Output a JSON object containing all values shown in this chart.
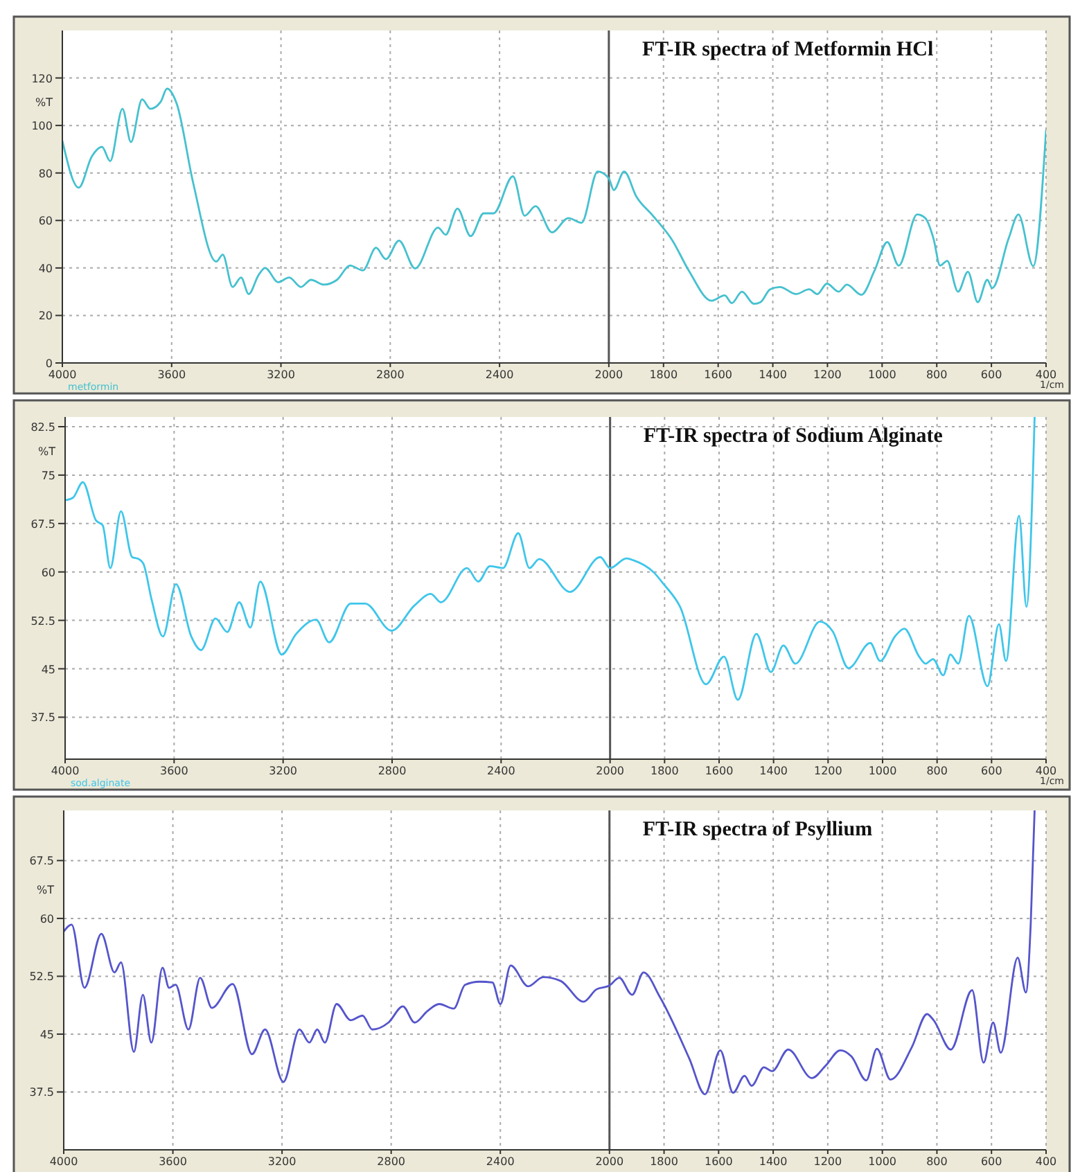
{
  "chart_data": [
    {
      "type": "line",
      "title": "FT-IR spectra of Metformin HCl",
      "xlabel": "1/cm",
      "ylabel": "%T",
      "xlim": [
        4000,
        400
      ],
      "xticks": [
        4000,
        3600,
        3200,
        2800,
        2400,
        2000,
        1800,
        1600,
        1400,
        1200,
        1000,
        800,
        600,
        400
      ],
      "ylim": [
        0,
        140
      ],
      "yticks": [
        0,
        20,
        40,
        60,
        80,
        100,
        120
      ],
      "grid": true,
      "ref_lines": [
        {
          "axis": "x",
          "value": 2000,
          "color": "#555555"
        }
      ],
      "series": [
        {
          "name": "metformin",
          "color": "#45c1cf",
          "x": [
            4000,
            3940,
            3892,
            3855,
            3825,
            3780,
            3749,
            3708,
            3678,
            3640,
            3617,
            3581,
            3521,
            3437,
            3413,
            3377,
            3346,
            3318,
            3282,
            3258,
            3210,
            3170,
            3127,
            3090,
            3043,
            2995,
            2947,
            2900,
            2852,
            2816,
            2768,
            2709,
            2625,
            2597,
            2554,
            2506,
            2458,
            2422,
            2351,
            2308,
            2268,
            2208,
            2148,
            2100,
            2041,
            2000,
            1982,
            1944,
            1899,
            1839,
            1767,
            1707,
            1624,
            1576,
            1550,
            1513,
            1469,
            1445,
            1410,
            1374,
            1315,
            1267,
            1237,
            1202,
            1159,
            1129,
            1076,
            1028,
            981,
            939,
            872,
            842,
            812,
            788,
            762,
            722,
            686,
            650,
            615,
            597,
            537,
            501,
            447,
            400
          ],
          "values": [
            93.6,
            73.8,
            87,
            91,
            85,
            107,
            93,
            111,
            107,
            110,
            115.5,
            109,
            75.7,
            42.7,
            45.6,
            32,
            36,
            29,
            37,
            40,
            34,
            36,
            32,
            35,
            33,
            35,
            41,
            39,
            48.5,
            43.7,
            51.5,
            39.8,
            57,
            54,
            65,
            53.4,
            63,
            63,
            78.6,
            62,
            66,
            55,
            61,
            59,
            80.6,
            77.7,
            72.8,
            80.6,
            70,
            62,
            51.5,
            38.8,
            26.2,
            28.5,
            25.2,
            30,
            24.9,
            25.6,
            31,
            32,
            29,
            31,
            29,
            33.4,
            30,
            33,
            28.7,
            38.8,
            50.9,
            41,
            62.5,
            61,
            52.4,
            41,
            43,
            30,
            38.4,
            25.6,
            35,
            31.5,
            52.4,
            62.5,
            40.8,
            98
          ]
        }
      ]
    },
    {
      "type": "line",
      "title": "FT-IR spectra of Sodium Alginate",
      "xlabel": "1/cm",
      "ylabel": "%T",
      "xlim": [
        4000,
        400
      ],
      "xticks": [
        4000,
        3600,
        3200,
        2800,
        2400,
        2000,
        1800,
        1600,
        1400,
        1200,
        1000,
        800,
        600,
        400
      ],
      "ylim": [
        31,
        84
      ],
      "yticks": [
        37.5,
        45,
        52.5,
        60,
        67.5,
        75,
        82.5
      ],
      "grid": true,
      "ref_lines": [
        {
          "axis": "x",
          "value": 2000,
          "color": "#555555"
        }
      ],
      "series": [
        {
          "name": "sod.alginate",
          "color": "#3fc6ea",
          "x": [
            4000,
            3971,
            3935,
            3887,
            3862,
            3834,
            3795,
            3754,
            3730,
            3713,
            3682,
            3641,
            3593,
            3537,
            3501,
            3448,
            3405,
            3361,
            3320,
            3284,
            3205,
            3152,
            3079,
            3031,
            2952,
            2899,
            2802,
            2718,
            2658,
            2621,
            2525,
            2484,
            2441,
            2393,
            2337,
            2296,
            2260,
            2147,
            2036,
            2000,
            1940,
            1914,
            1839,
            1803,
            1743,
            1648,
            1582,
            1531,
            1463,
            1410,
            1364,
            1320,
            1230,
            1183,
            1125,
            1045,
            1009,
            953,
            920,
            866,
            842,
            815,
            777,
            751,
            722,
            683,
            615,
            573,
            547,
            499,
            472,
            442
          ],
          "values": [
            71.1,
            71.5,
            73.9,
            68,
            67.2,
            60.6,
            69.4,
            62.3,
            62,
            61.3,
            55.6,
            50,
            58.1,
            50,
            47.9,
            52.8,
            50.7,
            55.3,
            51.4,
            58.5,
            47.2,
            50.4,
            52.6,
            49.1,
            55.1,
            55.1,
            50.9,
            54.8,
            56.6,
            55.3,
            60.6,
            58.5,
            60.9,
            60.6,
            66,
            60.6,
            62,
            56.9,
            62.3,
            60.6,
            62.1,
            61.8,
            59.9,
            58.1,
            54.6,
            42.6,
            46.9,
            40.2,
            50.4,
            44.5,
            48.6,
            45.8,
            52.3,
            50.8,
            45.1,
            49,
            46.2,
            50.1,
            51.2,
            46.9,
            45.8,
            46.5,
            44,
            47.2,
            45.8,
            53.2,
            42.3,
            51.9,
            46.2,
            68.7,
            54.6,
            84
          ]
        }
      ]
    },
    {
      "type": "line",
      "title": "FT-IR spectra of Psyllium",
      "ylabel": "%T",
      "xlim": [
        4000,
        400
      ],
      "xticks": [
        4000,
        3600,
        3200,
        2800,
        2400,
        2000,
        1800,
        1600,
        1400,
        1200,
        1000,
        800,
        600,
        400
      ],
      "ylim": [
        30,
        74
      ],
      "yticks": [
        37.5,
        45,
        52.5,
        60,
        67.5
      ],
      "grid": true,
      "ref_lines": [
        {
          "axis": "x",
          "value": 2000,
          "color": "#555555"
        }
      ],
      "series": [
        {
          "color": "#5555cc",
          "x": [
            4000,
            3971,
            3924,
            3862,
            3814,
            3790,
            3743,
            3710,
            3679,
            3638,
            3614,
            3590,
            3543,
            3500,
            3457,
            3381,
            3310,
            3262,
            3195,
            3136,
            3100,
            3071,
            3043,
            3000,
            2948,
            2905,
            2869,
            2810,
            2757,
            2714,
            2667,
            2624,
            2571,
            2529,
            2476,
            2429,
            2400,
            2362,
            2298,
            2243,
            2179,
            2095,
            2048,
            2000,
            1964,
            1917,
            1875,
            1815,
            1707,
            1650,
            1594,
            1547,
            1505,
            1479,
            1434,
            1404,
            1345,
            1258,
            1208,
            1154,
            1113,
            1059,
            1020,
            970,
            892,
            836,
            812,
            749,
            671,
            629,
            594,
            566,
            504,
            474,
            456,
            442
          ],
          "values": [
            58.3,
            59.2,
            51,
            58,
            53,
            54.3,
            42.7,
            50.1,
            43.9,
            53.6,
            51,
            51.4,
            45.6,
            52.3,
            48.4,
            51.5,
            42.4,
            45.6,
            38.8,
            45.6,
            43.9,
            45.6,
            43.9,
            48.9,
            46.8,
            47.4,
            45.6,
            46.5,
            48.6,
            46.5,
            48,
            48.9,
            48.3,
            51.4,
            51.8,
            51.7,
            48.9,
            53.9,
            51.2,
            52.4,
            51.9,
            49.2,
            50.8,
            51.3,
            52.3,
            50.1,
            53,
            49.8,
            41.8,
            37.2,
            42.9,
            37.4,
            39.6,
            38.3,
            40.7,
            40.2,
            43,
            39.3,
            40.9,
            42.9,
            42.1,
            39,
            43.1,
            39.1,
            43.3,
            47.6,
            46.8,
            43,
            50.7,
            41.3,
            46.5,
            42.6,
            54.9,
            50.4,
            59.5,
            74
          ]
        }
      ]
    }
  ]
}
